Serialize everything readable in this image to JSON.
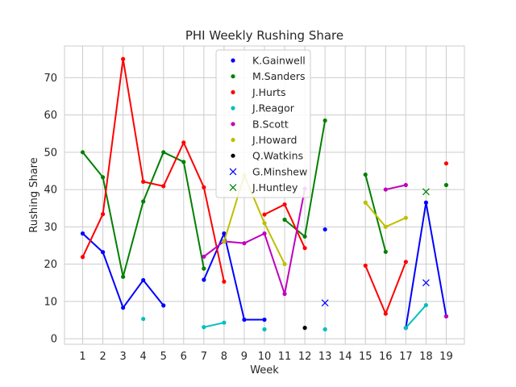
{
  "chart_data": {
    "type": "line",
    "title": "PHI Weekly Rushing Share",
    "xlabel": "Week",
    "ylabel": "Rushing Share",
    "xlim": [
      0.1,
      19.9
    ],
    "ylim": [
      -1.5,
      78.5
    ],
    "x_ticks": [
      1,
      2,
      3,
      4,
      5,
      6,
      7,
      8,
      9,
      10,
      11,
      12,
      13,
      14,
      15,
      16,
      17,
      18,
      19
    ],
    "y_ticks": [
      0,
      10,
      20,
      30,
      40,
      50,
      60,
      70
    ],
    "grid": true,
    "legend_position": "upper center",
    "series": [
      {
        "name": "K.Gainwell",
        "color": "#0000ff",
        "marker": "dot",
        "points": [
          [
            1,
            28.2
          ],
          [
            2,
            23.2
          ],
          [
            3,
            8.3
          ],
          [
            4,
            15.7
          ],
          [
            5,
            8.9
          ],
          [
            7,
            15.8
          ],
          [
            8,
            28.2
          ],
          [
            9,
            5.1
          ],
          [
            10,
            5.1
          ],
          [
            13,
            29.3
          ],
          [
            17,
            2.9
          ],
          [
            18,
            36.5
          ],
          [
            19,
            6.0
          ]
        ]
      },
      {
        "name": "M.Sanders",
        "color": "#008000",
        "marker": "dot",
        "points": [
          [
            1,
            50.0
          ],
          [
            2,
            43.3
          ],
          [
            3,
            16.6
          ],
          [
            4,
            36.8
          ],
          [
            5,
            50.0
          ],
          [
            6,
            47.4
          ],
          [
            7,
            18.8
          ],
          [
            11,
            31.9
          ],
          [
            12,
            27.4
          ],
          [
            13,
            58.5
          ],
          [
            15,
            44.0
          ],
          [
            16,
            23.3
          ],
          [
            19,
            41.2
          ]
        ]
      },
      {
        "name": "J.Hurts",
        "color": "#ff0000",
        "marker": "dot",
        "points": [
          [
            1,
            21.9
          ],
          [
            2,
            33.4
          ],
          [
            3,
            75.0
          ],
          [
            4,
            42.1
          ],
          [
            5,
            40.9
          ],
          [
            6,
            52.6
          ],
          [
            7,
            40.6
          ],
          [
            8,
            15.3
          ],
          [
            10,
            33.3
          ],
          [
            11,
            36.0
          ],
          [
            12,
            24.3
          ],
          [
            15,
            19.6
          ],
          [
            16,
            6.7
          ],
          [
            17,
            20.6
          ],
          [
            19,
            47.0
          ]
        ]
      },
      {
        "name": "J.Reagor",
        "color": "#00bfbf",
        "marker": "dot",
        "points": [
          [
            4,
            5.3
          ],
          [
            7,
            3.1
          ],
          [
            8,
            4.3
          ],
          [
            10,
            2.5
          ],
          [
            13,
            2.5
          ],
          [
            17,
            2.9
          ],
          [
            18,
            9.0
          ]
        ]
      },
      {
        "name": "B.Scott",
        "color": "#bf00bf",
        "marker": "dot",
        "points": [
          [
            7,
            22.0
          ],
          [
            8,
            26.1
          ],
          [
            9,
            25.6
          ],
          [
            10,
            28.2
          ],
          [
            11,
            12.0
          ],
          [
            12,
            40.2
          ],
          [
            16,
            40.0
          ],
          [
            17,
            41.2
          ],
          [
            19,
            6.0
          ]
        ]
      },
      {
        "name": "J.Howard",
        "color": "#bfbf00",
        "marker": "dot",
        "points": [
          [
            8,
            26.0
          ],
          [
            9,
            43.8
          ],
          [
            10,
            31.0
          ],
          [
            11,
            20.0
          ],
          [
            15,
            36.5
          ],
          [
            16,
            30.0
          ],
          [
            17,
            32.4
          ]
        ]
      },
      {
        "name": "Q.Watkins",
        "color": "#000000",
        "marker": "dot",
        "points": [
          [
            12,
            2.9
          ]
        ]
      },
      {
        "name": "G.Minshew",
        "color": "#0000ff",
        "marker": "x",
        "points": [
          [
            13,
            9.6
          ],
          [
            18,
            15.0
          ]
        ]
      },
      {
        "name": "J.Huntley",
        "color": "#008000",
        "marker": "x",
        "points": [
          [
            18,
            39.4
          ]
        ]
      }
    ]
  }
}
